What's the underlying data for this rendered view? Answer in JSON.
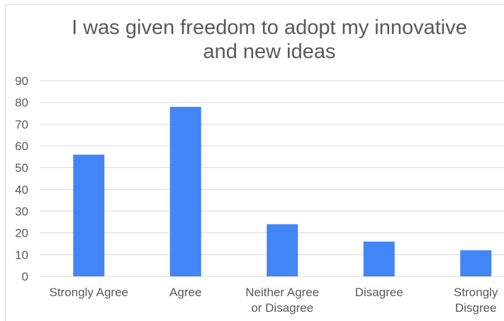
{
  "chart_data": {
    "type": "bar",
    "title": "I was given freedom to adopt my innovative\nand new ideas",
    "categories": [
      "Strongly Agree",
      "Agree",
      "Neither Agree or Disagree",
      "Disagree",
      "Strongly Disgree"
    ],
    "category_lines": [
      [
        "Strongly Agree"
      ],
      [
        "Agree"
      ],
      [
        "Neither Agree",
        "or Disagree"
      ],
      [
        "Disagree"
      ],
      [
        "Strongly",
        "Disgree"
      ]
    ],
    "values": [
      56,
      78,
      24,
      16,
      12
    ],
    "ylim": [
      0,
      90
    ],
    "yticks": [
      0,
      10,
      20,
      30,
      40,
      50,
      60,
      70,
      80,
      90
    ],
    "gridlines": true,
    "legend": "none",
    "bar_color": "#4285f4",
    "grid_color": "#d9d9d9",
    "text_color": "#595959"
  }
}
